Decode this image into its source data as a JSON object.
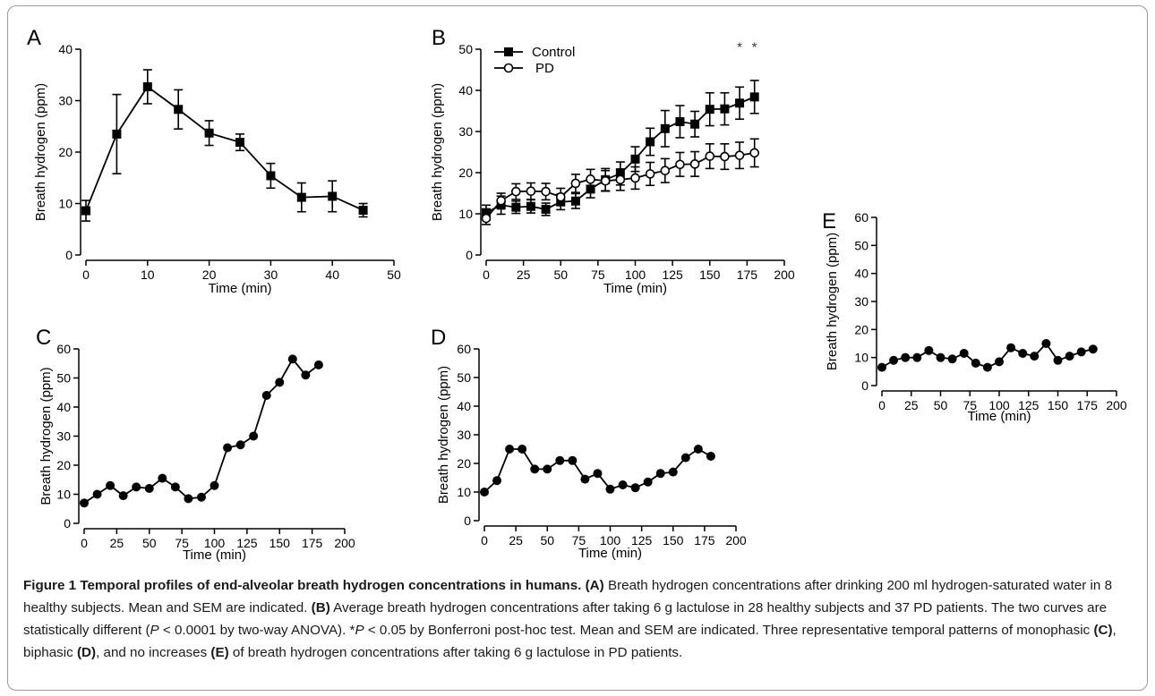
{
  "chart_data": [
    {
      "panel": "A",
      "type": "line",
      "xlabel": "Time (min)",
      "ylabel": "Breath hydrogen (ppm)",
      "xlim": [
        0,
        50
      ],
      "ylim": [
        0,
        40
      ],
      "xticks": [
        0,
        10,
        20,
        30,
        40,
        50
      ],
      "yticks": [
        0,
        10,
        20,
        30,
        40
      ],
      "series": [
        {
          "marker": "filled-square",
          "x": [
            0,
            5,
            10,
            15,
            20,
            25,
            30,
            35,
            40,
            45
          ],
          "y": [
            8.6,
            23.5,
            32.7,
            28.3,
            23.7,
            21.9,
            15.4,
            11.2,
            11.4,
            8.7
          ],
          "err": [
            2.0,
            7.7,
            3.3,
            3.8,
            2.4,
            1.6,
            2.4,
            2.8,
            3.0,
            1.3
          ]
        }
      ]
    },
    {
      "panel": "B",
      "type": "line",
      "xlabel": "Time (min)",
      "ylabel": "Breath hydrogen (ppm)",
      "xlim": [
        0,
        200
      ],
      "ylim": [
        0,
        50
      ],
      "xticks": [
        0,
        25,
        50,
        75,
        100,
        125,
        150,
        175,
        200
      ],
      "yticks": [
        0,
        10,
        20,
        30,
        40,
        50
      ],
      "legend": "top-left",
      "annotations": [
        "*",
        "*"
      ],
      "series": [
        {
          "name": "Control",
          "marker": "filled-square",
          "x": [
            0,
            10,
            20,
            30,
            40,
            50,
            60,
            70,
            80,
            90,
            100,
            110,
            120,
            130,
            140,
            150,
            160,
            170,
            180
          ],
          "y": [
            10.3,
            12.1,
            11.6,
            11.8,
            11.1,
            12.9,
            13.1,
            16.0,
            18.3,
            19.8,
            23.3,
            27.5,
            30.7,
            32.4,
            31.8,
            35.4,
            35.5,
            36.9,
            38.4
          ],
          "err": [
            1.8,
            2.2,
            1.5,
            1.6,
            1.5,
            1.9,
            1.8,
            2.1,
            2.7,
            2.8,
            3.0,
            3.3,
            4.4,
            3.9,
            3.1,
            4.0,
            3.9,
            3.9,
            4.0
          ]
        },
        {
          "name": "PD",
          "marker": "open-circle",
          "x": [
            0,
            10,
            20,
            30,
            40,
            50,
            60,
            70,
            80,
            90,
            100,
            110,
            120,
            130,
            140,
            150,
            160,
            170,
            180
          ],
          "y": [
            8.9,
            13.2,
            15.4,
            15.5,
            15.4,
            14.1,
            17.4,
            18.4,
            18.0,
            18.3,
            18.7,
            19.7,
            20.5,
            22.0,
            22.1,
            24.0,
            23.9,
            24.2,
            24.8
          ],
          "err": [
            1.5,
            1.8,
            1.9,
            2.0,
            2.0,
            2.1,
            2.2,
            2.4,
            2.5,
            2.6,
            2.7,
            2.8,
            2.9,
            2.9,
            3.0,
            3.0,
            3.1,
            3.2,
            3.4
          ]
        }
      ]
    },
    {
      "panel": "C",
      "type": "line",
      "xlabel": "Time (min)",
      "ylabel": "Breath hydrogen (ppm)",
      "xlim": [
        0,
        200
      ],
      "ylim": [
        0,
        60
      ],
      "xticks": [
        0,
        25,
        50,
        75,
        100,
        125,
        150,
        175,
        200
      ],
      "yticks": [
        0,
        10,
        20,
        30,
        40,
        50,
        60
      ],
      "series": [
        {
          "marker": "filled-circle",
          "x": [
            0,
            10,
            20,
            30,
            40,
            50,
            60,
            70,
            80,
            90,
            100,
            110,
            120,
            130,
            140,
            150,
            160,
            170,
            180
          ],
          "y": [
            7.0,
            10.0,
            13.0,
            9.5,
            12.5,
            12.0,
            15.5,
            12.5,
            8.5,
            9.0,
            13.0,
            26.0,
            27.0,
            30.0,
            44.0,
            48.5,
            56.5,
            51.0,
            54.5
          ]
        }
      ]
    },
    {
      "panel": "D",
      "type": "line",
      "xlabel": "Time (min)",
      "ylabel": "Breath hydrogen (ppm)",
      "xlim": [
        0,
        200
      ],
      "ylim": [
        0,
        60
      ],
      "xticks": [
        0,
        25,
        50,
        75,
        100,
        125,
        150,
        175,
        200
      ],
      "yticks": [
        0,
        10,
        20,
        30,
        40,
        50,
        60
      ],
      "series": [
        {
          "marker": "filled-circle",
          "x": [
            0,
            10,
            20,
            30,
            40,
            50,
            60,
            70,
            80,
            90,
            100,
            110,
            120,
            130,
            140,
            150,
            160,
            170,
            180
          ],
          "y": [
            10.0,
            14.0,
            25.0,
            25.0,
            18.0,
            18.0,
            21.0,
            21.0,
            14.5,
            16.5,
            11.0,
            12.5,
            11.5,
            13.5,
            16.5,
            17.0,
            22.0,
            25.0,
            22.5
          ]
        }
      ]
    },
    {
      "panel": "E",
      "type": "line",
      "xlabel": "Time (min)",
      "ylabel": "Breath hydrogen (ppm)",
      "xlim": [
        0,
        200
      ],
      "ylim": [
        0,
        60
      ],
      "xticks": [
        0,
        25,
        50,
        75,
        100,
        125,
        150,
        175,
        200
      ],
      "yticks": [
        0,
        10,
        20,
        30,
        40,
        50,
        60
      ],
      "series": [
        {
          "marker": "filled-circle",
          "x": [
            0,
            10,
            20,
            30,
            40,
            50,
            60,
            70,
            80,
            90,
            100,
            110,
            120,
            130,
            140,
            150,
            160,
            170,
            180
          ],
          "y": [
            6.5,
            9.0,
            10.0,
            10.0,
            12.5,
            10.0,
            9.5,
            11.5,
            8.0,
            6.5,
            8.5,
            13.5,
            11.5,
            10.5,
            15.0,
            9.0,
            10.5,
            12.0,
            13.0
          ]
        }
      ]
    }
  ],
  "caption": {
    "figure_label": "Figure 1",
    "title": "Temporal profiles of end-alveolar breath hydrogen concentrations in humans.",
    "tag_a": "(A)",
    "text_a": "Breath hydrogen concentrations after drinking 200 ml hydrogen-saturated water in 8 healthy subjects. Mean and SEM are indicated.",
    "tag_b": "(B)",
    "text_b1": "Average breath hydrogen concentrations after taking 6 g lactulose in 28 healthy subjects and 37 PD patients. The two curves are statistically different (",
    "p_letter_1": "P",
    "text_b2": " < 0.0001 by two-way ANOVA). *",
    "p_letter_2": "P",
    "text_b3": " < 0.05 by Bonferroni post-hoc test. Mean and SEM are indicated. Three representative temporal patterns of monophasic",
    "tag_c": "(C)",
    "text_c": ", biphasic",
    "tag_d": "(D)",
    "text_d": ", and no increases",
    "tag_e": "(E)",
    "text_e": "of breath hydrogen concentrations after taking 6 g lactulose in PD patients."
  }
}
